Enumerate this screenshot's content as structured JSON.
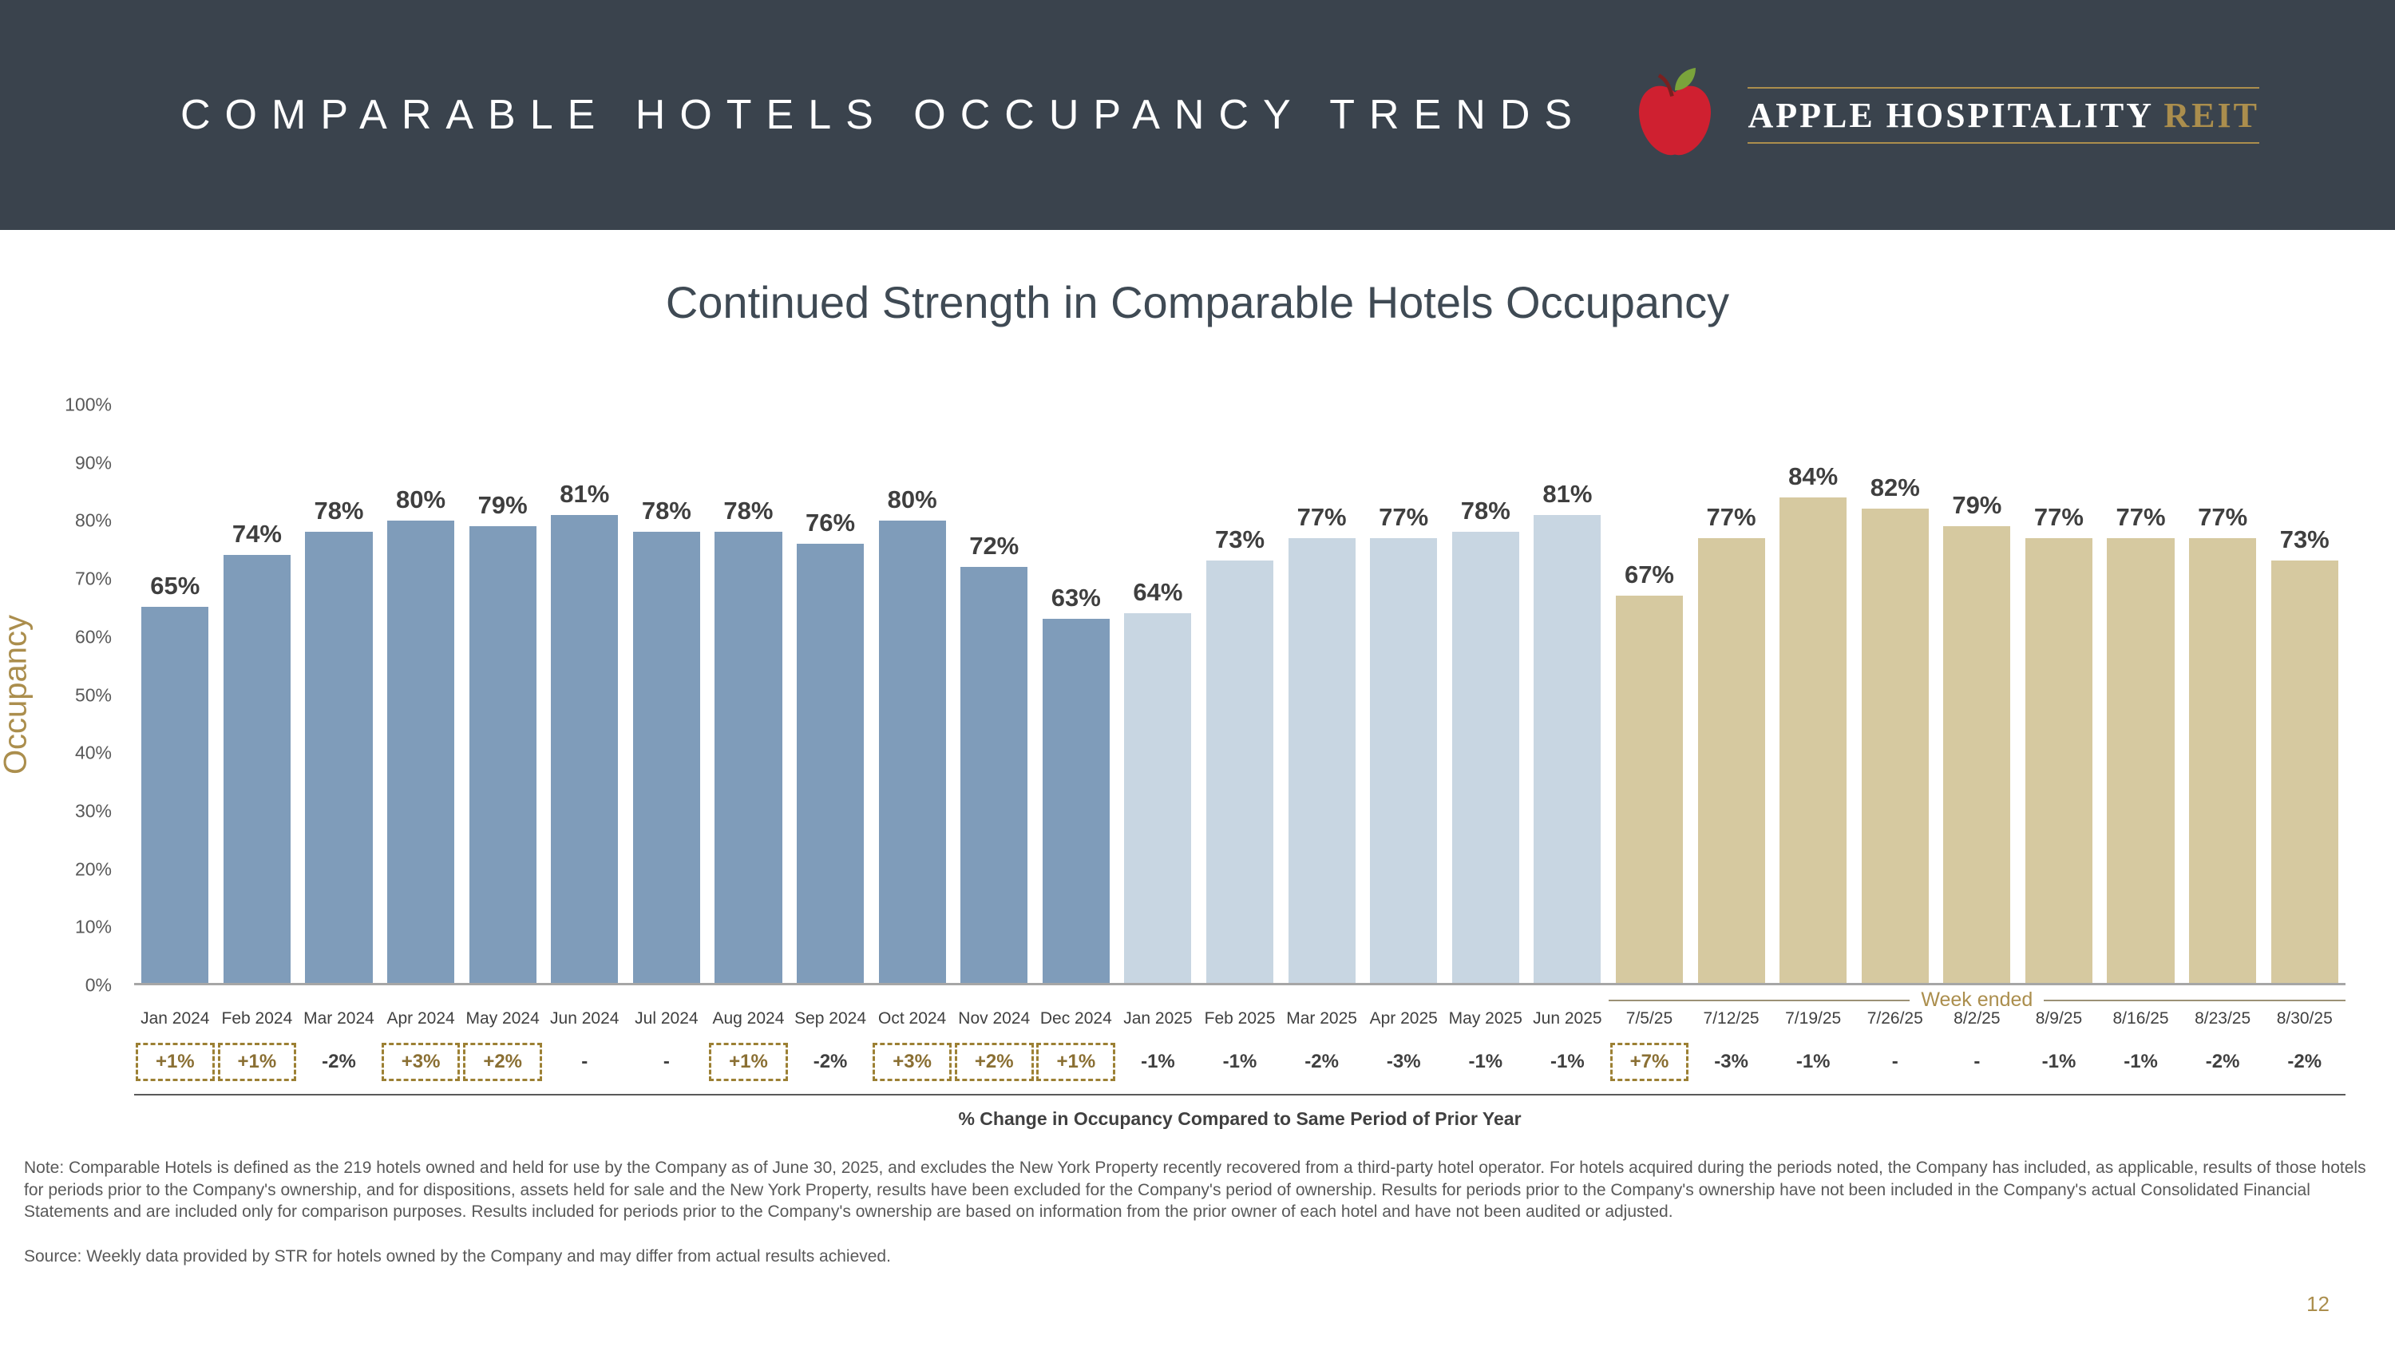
{
  "header": {
    "title": "COMPARABLE HOTELS OCCUPANCY TRENDS",
    "brand": {
      "main": "APPLE HOSPITALITY",
      "accent": "REIT"
    }
  },
  "chart_data": {
    "type": "bar",
    "title": "Continued Strength in Comparable Hotels Occupancy",
    "ylabel": "Occupancy",
    "ylim": [
      0,
      100
    ],
    "yticks": [
      100,
      90,
      80,
      70,
      60,
      50,
      40,
      30,
      20,
      10,
      0
    ],
    "grid": false,
    "legend": "none",
    "categories": [
      "Jan 2024",
      "Feb 2024",
      "Mar 2024",
      "Apr 2024",
      "May 2024",
      "Jun 2024",
      "Jul 2024",
      "Aug 2024",
      "Sep 2024",
      "Oct 2024",
      "Nov 2024",
      "Dec 2024",
      "Jan 2025",
      "Feb 2025",
      "Mar 2025",
      "Apr 2025",
      "May 2025",
      "Jun 2025",
      "7/5/25",
      "7/12/25",
      "7/19/25",
      "7/26/25",
      "8/2/25",
      "8/9/25",
      "8/16/25",
      "8/23/25",
      "8/30/25"
    ],
    "values": [
      65,
      74,
      78,
      80,
      79,
      81,
      78,
      78,
      76,
      80,
      72,
      63,
      64,
      73,
      77,
      77,
      78,
      81,
      67,
      77,
      84,
      82,
      79,
      77,
      77,
      77,
      73
    ],
    "bar_groups": [
      "y2024",
      "y2024",
      "y2024",
      "y2024",
      "y2024",
      "y2024",
      "y2024",
      "y2024",
      "y2024",
      "y2024",
      "y2024",
      "y2024",
      "y2025",
      "y2025",
      "y2025",
      "y2025",
      "y2025",
      "y2025",
      "week",
      "week",
      "week",
      "week",
      "week",
      "week",
      "week",
      "week",
      "week"
    ],
    "group_colors": {
      "y2024": "#7f9cba",
      "y2025": "#c8d6e2",
      "week": "#d6c9a0"
    },
    "week_ended_label": "Week ended",
    "pct_change": [
      {
        "text": "+1%",
        "boxed": true
      },
      {
        "text": "+1%",
        "boxed": true
      },
      {
        "text": "-2%",
        "boxed": false
      },
      {
        "text": "+3%",
        "boxed": true
      },
      {
        "text": "+2%",
        "boxed": true
      },
      {
        "text": "-",
        "boxed": false
      },
      {
        "text": "-",
        "boxed": false
      },
      {
        "text": "+1%",
        "boxed": true
      },
      {
        "text": "-2%",
        "boxed": false
      },
      {
        "text": "+3%",
        "boxed": true
      },
      {
        "text": "+2%",
        "boxed": true
      },
      {
        "text": "+1%",
        "boxed": true
      },
      {
        "text": "-1%",
        "boxed": false
      },
      {
        "text": "-1%",
        "boxed": false
      },
      {
        "text": "-2%",
        "boxed": false
      },
      {
        "text": "-3%",
        "boxed": false
      },
      {
        "text": "-1%",
        "boxed": false
      },
      {
        "text": "-1%",
        "boxed": false
      },
      {
        "text": "+7%",
        "boxed": true
      },
      {
        "text": "-3%",
        "boxed": false
      },
      {
        "text": "-1%",
        "boxed": false
      },
      {
        "text": "-",
        "boxed": false
      },
      {
        "text": "-",
        "boxed": false
      },
      {
        "text": "-1%",
        "boxed": false
      },
      {
        "text": "-1%",
        "boxed": false
      },
      {
        "text": "-2%",
        "boxed": false
      },
      {
        "text": "-2%",
        "boxed": false
      }
    ],
    "pct_caption": "% Change in Occupancy Compared to Same Period of Prior Year"
  },
  "slide": {
    "note": "Note: Comparable Hotels is defined as the 219 hotels owned and held for use by the Company as of June 30, 2025, and excludes the New York Property recently recovered from a third-party hotel operator. For hotels acquired during the periods noted, the Company has included, as applicable, results of those hotels for periods prior to the Company's ownership, and for dispositions, assets held for sale and the New York Property, results have been excluded for the Company's period of ownership. Results for periods prior to the Company's ownership have not been included in the Company's actual Consolidated Financial Statements and are included only for comparison purposes. Results included for periods prior to the Company's ownership are based on information from the prior owner of each hotel and have not been audited or adjusted.",
    "source": "Source:  Weekly data provided by STR for hotels owned by the Company and may differ from actual results achieved.",
    "page_number": "12"
  },
  "colors": {
    "header_bg": "#3a434d",
    "accent_gold": "#ab8e4d",
    "title_color": "#3f4a54",
    "text_gray": "#595959"
  }
}
